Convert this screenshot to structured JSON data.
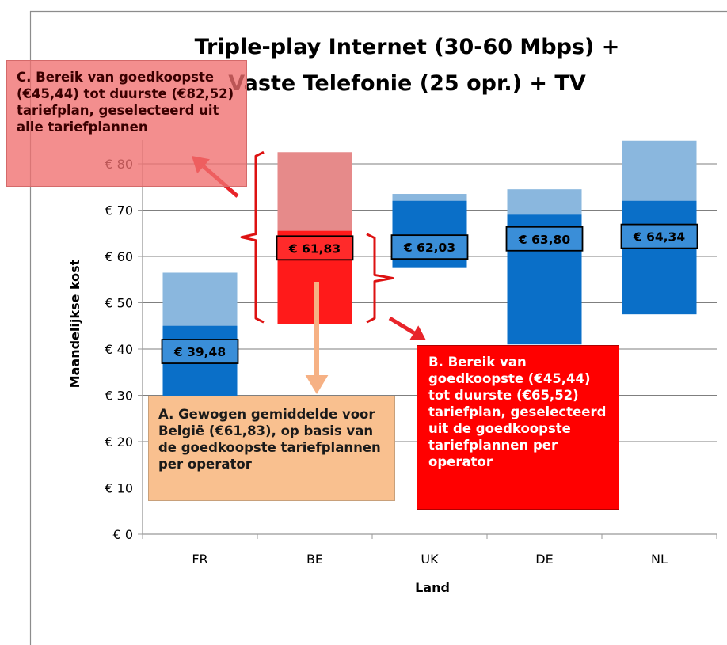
{
  "chart_data": {
    "type": "bar",
    "title_lines": [
      "Triple-play Internet (30-60 Mbps) +",
      "Vaste Telefonie (25 opr.) + TV"
    ],
    "xlabel": "Land",
    "ylabel": "Maandelijkse kost",
    "categories": [
      "FR",
      "BE",
      "UK",
      "DE",
      "NL"
    ],
    "ylim": [
      0,
      90
    ],
    "yticks": [
      0,
      10,
      20,
      30,
      40,
      50,
      60,
      70,
      80
    ],
    "ytick_labels": [
      "€ 0",
      "€ 10",
      "€ 20",
      "€ 30",
      "€ 40",
      "€ 50",
      "€ 60",
      "€ 70",
      "€ 80"
    ],
    "range_all_tariffs": [
      [
        29.5,
        56.5
      ],
      [
        45.44,
        82.52
      ],
      [
        57.5,
        73.5
      ],
      [
        41,
        74.5
      ],
      [
        47.5,
        85
      ]
    ],
    "range_cheapest_per_operator": [
      [
        29.5,
        45
      ],
      [
        45.44,
        65.52
      ],
      [
        57.5,
        72
      ],
      [
        41,
        69
      ],
      [
        47.5,
        72
      ]
    ],
    "weighted_average": [
      39.48,
      61.83,
      62.03,
      63.8,
      64.34
    ],
    "value_labels": [
      "€ 39,48",
      "€ 61,83",
      "€ 62,03",
      "€ 63,80",
      "€ 64,34"
    ],
    "colors": {
      "light_blue": "#8ab7de",
      "dark_blue": "#0a6fc8",
      "light_red": "#e68a8a",
      "red": "#ff1a1a",
      "label_box": "#3a8ed8",
      "label_box_be": "#ff2a2a",
      "bracket": "#dd1111",
      "arrow_red": "#e8242a",
      "arrow_orange": "#f6b184",
      "axis": "#999999"
    }
  },
  "callouts": {
    "c": "C. Bereik van goedkoopste (€45,44) tot duurste (€82,52) tariefplan, geselecteerd uit alle tariefplannen",
    "a": "A. Gewogen gemiddelde voor België (€61,83), op basis van de goedkoopste tariefplannen per operator",
    "b": "B. Bereik van goedkoopste (€45,44) tot duurste (€65,52) tariefplan, geselecteerd uit de goedkoopste tariefplannen per operator"
  }
}
